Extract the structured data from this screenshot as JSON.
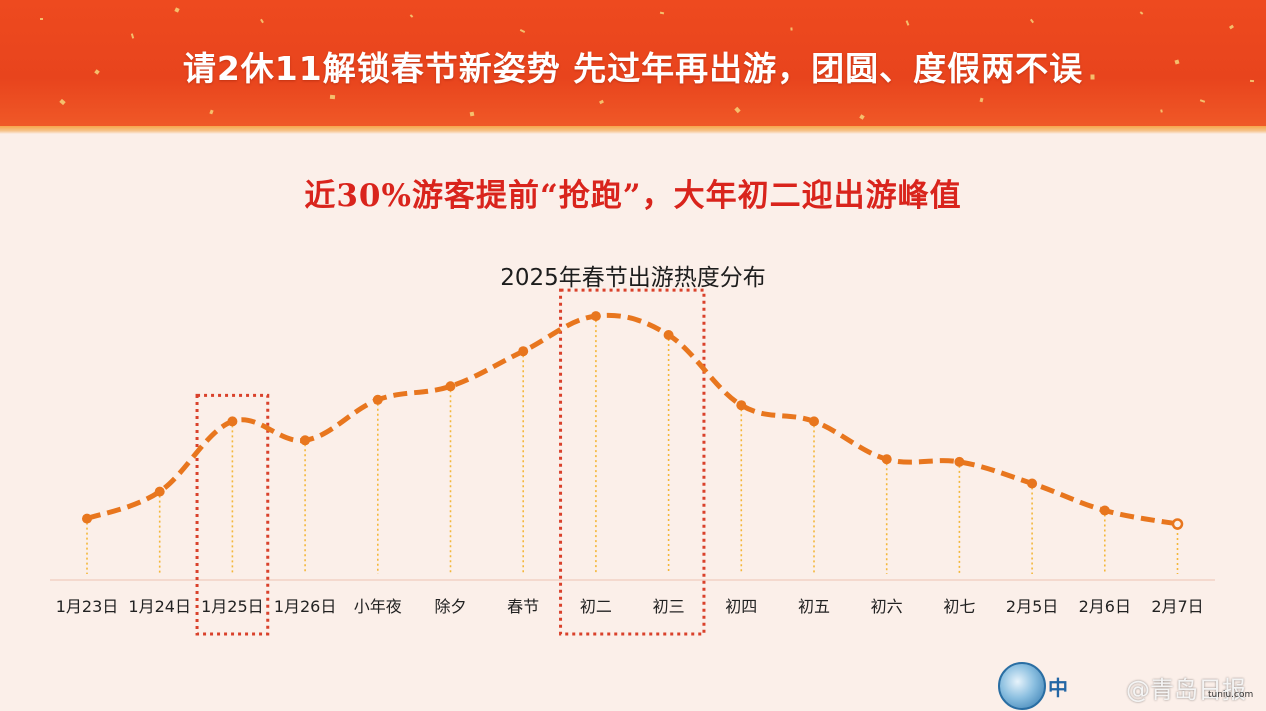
{
  "banner": {
    "title": "请2休11解锁春节新姿势  先过年再出游，团圆、度假两不误"
  },
  "subtitle": "近30%游客提前“抢跑”，大年初二迎出游峰值",
  "chart_data": {
    "type": "line",
    "title": "2025年春节出游热度分布",
    "categories": [
      "1月23日",
      "1月24日",
      "1月25日",
      "1月26日",
      "小年夜",
      "除夕",
      "春节",
      "初二",
      "初三",
      "初四",
      "初五",
      "初六",
      "初七",
      "2月5日",
      "2月6日",
      "2月7日"
    ],
    "series": [
      {
        "values": [
          22,
          32,
          58,
          51,
          66,
          71,
          84,
          97,
          90,
          64,
          58,
          44,
          43,
          35,
          25,
          20
        ]
      }
    ],
    "ylim": [
      0,
      100
    ],
    "highlights": [
      {
        "categories": [
          "1月25日"
        ]
      },
      {
        "categories": [
          "初二",
          "初三"
        ]
      }
    ],
    "line_color": "#e8761e",
    "highlight_color": "#d9412b",
    "grid": false
  },
  "watermark": {
    "logo_text": "中",
    "weibo_text": "@青岛日报",
    "site": "tuniu.com"
  }
}
